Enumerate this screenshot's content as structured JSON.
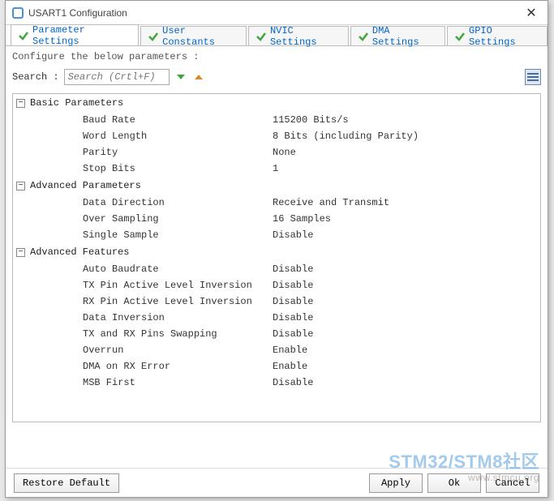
{
  "window": {
    "title": "USART1 Configuration"
  },
  "tabs": [
    {
      "label": "Parameter Settings",
      "active": true
    },
    {
      "label": "User Constants",
      "active": false
    },
    {
      "label": "NVIC Settings",
      "active": false
    },
    {
      "label": "DMA Settings",
      "active": false
    },
    {
      "label": "GPIO Settings",
      "active": false
    }
  ],
  "intro": "Configure the below parameters :",
  "search": {
    "label": "Search :",
    "placeholder": "Search (Crtl+F)"
  },
  "groups": [
    {
      "name": "Basic Parameters",
      "rows": [
        {
          "label": "Baud Rate",
          "value": "115200 Bits/s"
        },
        {
          "label": "Word Length",
          "value": "8 Bits (including Parity)"
        },
        {
          "label": "Parity",
          "value": "None"
        },
        {
          "label": "Stop Bits",
          "value": "1"
        }
      ]
    },
    {
      "name": "Advanced Parameters",
      "rows": [
        {
          "label": "Data Direction",
          "value": "Receive and Transmit"
        },
        {
          "label": "Over Sampling",
          "value": "16 Samples"
        },
        {
          "label": "Single Sample",
          "value": "Disable"
        }
      ]
    },
    {
      "name": "Advanced Features",
      "rows": [
        {
          "label": "Auto Baudrate",
          "value": "Disable"
        },
        {
          "label": "TX Pin Active Level Inversion",
          "value": "Disable"
        },
        {
          "label": "RX Pin Active Level Inversion",
          "value": "Disable"
        },
        {
          "label": "Data Inversion",
          "value": "Disable"
        },
        {
          "label": "TX and RX Pins Swapping",
          "value": "Disable"
        },
        {
          "label": "Overrun",
          "value": "Enable"
        },
        {
          "label": "DMA on RX Error",
          "value": "Enable"
        },
        {
          "label": "MSB First",
          "value": "Disable"
        }
      ]
    }
  ],
  "buttons": {
    "restore": "Restore Default",
    "apply": "Apply",
    "ok": "Ok",
    "cancel": "Cancel"
  },
  "watermark": {
    "main": "STM32/STM8社区",
    "sub": "www.stmcu.org"
  },
  "colors": {
    "window_border": "#999999",
    "tab_link": "#0066cc",
    "check_green": "#3fa63f",
    "arrow_green": "#3fa63f",
    "arrow_orange": "#d98b2b",
    "listicon_border": "#6a8bb5",
    "listicon_bg": "#dce6f2",
    "watermark_color": "rgba(70,150,220,0.5)"
  }
}
